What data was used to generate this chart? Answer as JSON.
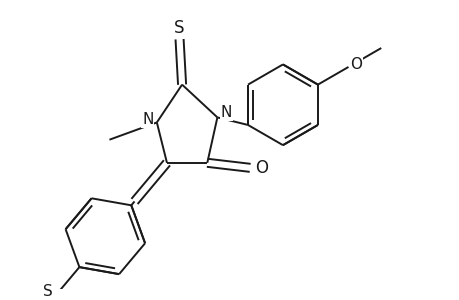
{
  "bg_color": "#ffffff",
  "line_color": "#1a1a1a",
  "line_width": 1.4,
  "figsize": [
    4.6,
    3.0
  ],
  "dpi": 100,
  "xlim": [
    -2.5,
    4.5
  ],
  "ylim": [
    -3.2,
    2.5
  ]
}
